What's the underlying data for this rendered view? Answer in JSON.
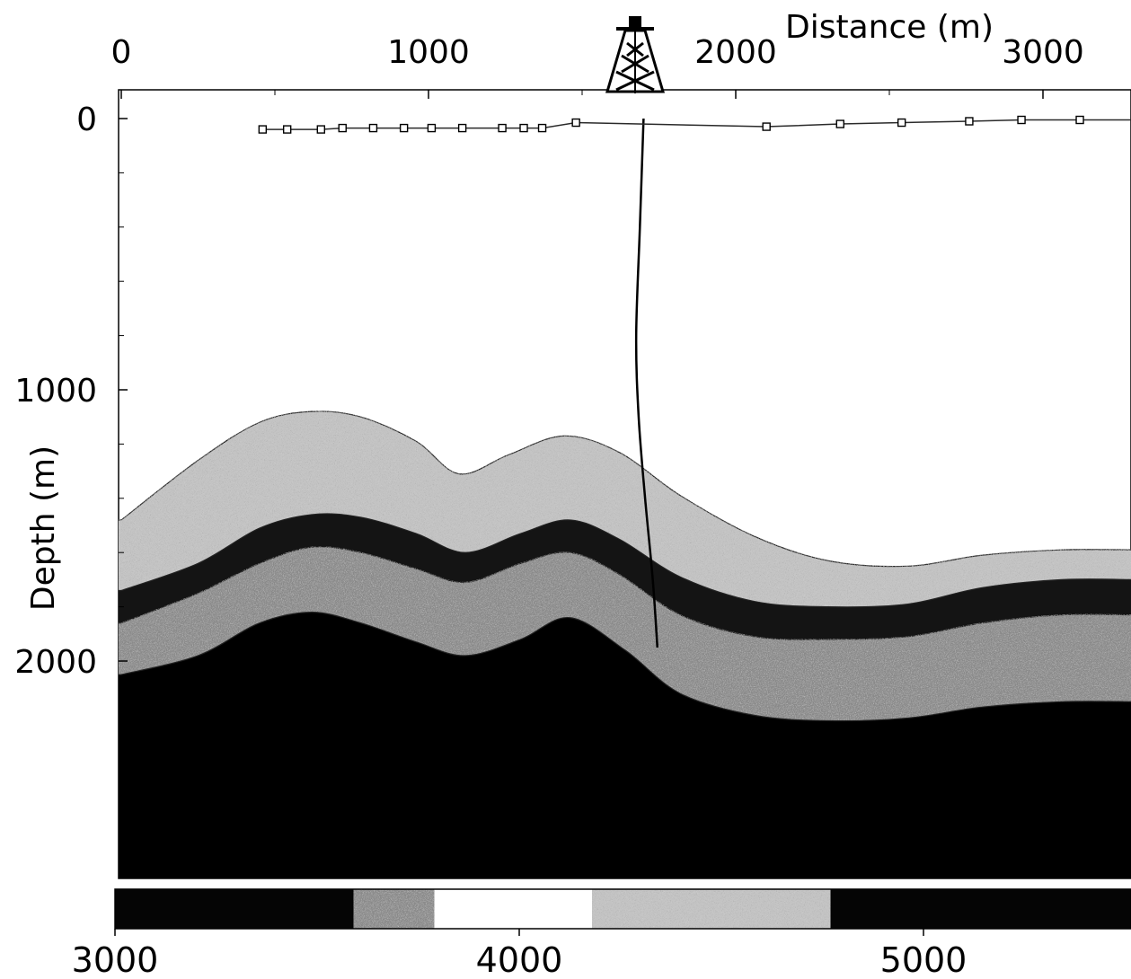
{
  "x_axis": {
    "label": "Distance (m)",
    "ticks": [
      0,
      1000,
      2000,
      3000
    ],
    "range": [
      0,
      3300
    ]
  },
  "y_axis": {
    "label": "Depth (m)",
    "ticks": [
      0,
      1000,
      2000
    ],
    "range": [
      -100,
      2820
    ],
    "reversed": true
  },
  "colorbar": {
    "ticks": [
      3000,
      4000,
      5000
    ],
    "range": [
      3000,
      5600
    ]
  },
  "colors": {
    "pale_speckle": "#c4c4c4",
    "dark_layer": "#141414",
    "mid_speckle": "#8a8a8a",
    "deep_layer": "#000000",
    "receiver_line": "#2a2a2a"
  },
  "icons": {
    "rig": "drilling-rig-icon"
  },
  "chart_data": {
    "type": "cross-section",
    "x_label": "Distance (m)",
    "y_label": "Depth (m)",
    "x_range": [
      0,
      3300
    ],
    "depth_range": [
      -100,
      2820
    ],
    "rig_x": 1700,
    "horizons": [
      {
        "name": "top_pale",
        "points": [
          [
            0,
            1480
          ],
          [
            250,
            1260
          ],
          [
            450,
            1120
          ],
          [
            620,
            1080
          ],
          [
            780,
            1100
          ],
          [
            960,
            1190
          ],
          [
            1100,
            1310
          ],
          [
            1260,
            1240
          ],
          [
            1440,
            1170
          ],
          [
            1620,
            1230
          ],
          [
            1820,
            1390
          ],
          [
            2060,
            1540
          ],
          [
            2300,
            1630
          ],
          [
            2560,
            1650
          ],
          [
            2800,
            1610
          ],
          [
            3060,
            1590
          ],
          [
            3300,
            1590
          ]
        ]
      },
      {
        "name": "top_dark",
        "points": [
          [
            0,
            1740
          ],
          [
            250,
            1640
          ],
          [
            450,
            1510
          ],
          [
            620,
            1460
          ],
          [
            780,
            1470
          ],
          [
            960,
            1530
          ],
          [
            1120,
            1600
          ],
          [
            1300,
            1530
          ],
          [
            1460,
            1480
          ],
          [
            1620,
            1550
          ],
          [
            1820,
            1690
          ],
          [
            2060,
            1780
          ],
          [
            2300,
            1800
          ],
          [
            2560,
            1790
          ],
          [
            2800,
            1730
          ],
          [
            3060,
            1700
          ],
          [
            3300,
            1700
          ]
        ]
      },
      {
        "name": "top_mid",
        "points": [
          [
            0,
            1860
          ],
          [
            250,
            1750
          ],
          [
            450,
            1640
          ],
          [
            620,
            1580
          ],
          [
            780,
            1600
          ],
          [
            960,
            1660
          ],
          [
            1120,
            1710
          ],
          [
            1300,
            1640
          ],
          [
            1460,
            1600
          ],
          [
            1620,
            1680
          ],
          [
            1820,
            1830
          ],
          [
            2060,
            1910
          ],
          [
            2300,
            1920
          ],
          [
            2560,
            1910
          ],
          [
            2800,
            1860
          ],
          [
            3060,
            1830
          ],
          [
            3300,
            1830
          ]
        ]
      },
      {
        "name": "top_deep",
        "points": [
          [
            0,
            2050
          ],
          [
            250,
            1980
          ],
          [
            450,
            1860
          ],
          [
            620,
            1820
          ],
          [
            780,
            1860
          ],
          [
            960,
            1930
          ],
          [
            1120,
            1980
          ],
          [
            1300,
            1920
          ],
          [
            1460,
            1840
          ],
          [
            1640,
            1960
          ],
          [
            1820,
            2120
          ],
          [
            2060,
            2200
          ],
          [
            2300,
            2220
          ],
          [
            2560,
            2210
          ],
          [
            2800,
            2170
          ],
          [
            3060,
            2150
          ],
          [
            3300,
            2150
          ]
        ]
      }
    ],
    "receivers": [
      [
        460,
        40
      ],
      [
        540,
        40
      ],
      [
        650,
        40
      ],
      [
        720,
        35
      ],
      [
        820,
        35
      ],
      [
        920,
        35
      ],
      [
        1010,
        35
      ],
      [
        1110,
        35
      ],
      [
        1240,
        35
      ],
      [
        1310,
        35
      ],
      [
        1370,
        35
      ],
      [
        1480,
        15
      ],
      [
        2100,
        30
      ],
      [
        2340,
        20
      ],
      [
        2540,
        15
      ],
      [
        2760,
        10
      ],
      [
        2930,
        5
      ],
      [
        3120,
        5
      ],
      [
        3300,
        5
      ]
    ],
    "well_path": [
      [
        1700,
        0
      ],
      [
        1688,
        400
      ],
      [
        1676,
        800
      ],
      [
        1684,
        1100
      ],
      [
        1705,
        1400
      ],
      [
        1730,
        1700
      ],
      [
        1745,
        1950
      ]
    ],
    "colorbar_segments": [
      {
        "from": 3000,
        "to": 3590,
        "color": "#050505",
        "speckle": false
      },
      {
        "from": 3590,
        "to": 3790,
        "color": "#8a8a8a",
        "speckle": true
      },
      {
        "from": 3790,
        "to": 4180,
        "color": "#ffffff",
        "speckle": false
      },
      {
        "from": 4180,
        "to": 4770,
        "color": "#c4c4c4",
        "speckle": true
      },
      {
        "from": 4770,
        "to": 5600,
        "color": "#050505",
        "speckle": false
      }
    ]
  }
}
